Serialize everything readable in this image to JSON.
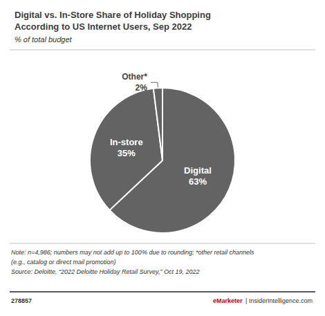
{
  "chart_data": {
    "type": "pie",
    "title": "Digital vs. In-Store Share of Holiday Shopping\nAccording to US Internet Users, Sep 2022",
    "subtitle": "% of total budget",
    "categories": [
      "Digital",
      "In-store",
      "Other*"
    ],
    "values": [
      63,
      35,
      2
    ],
    "value_labels": [
      "63%",
      "35%",
      "2%"
    ],
    "color": "#636363",
    "data_labels": true,
    "annotations": [
      "Note: n=4,986; numbers may not add up to 100% due to rounding; *other retail channels\n(e.g., catalog or direct mail promotion)\nSource: Deloitte, “2022 Deloitte Holiday Retail Survey,” Oct 19, 2022",
      "278857",
      "eMarketer",
      " | InsiderIntelligence.com"
    ]
  }
}
